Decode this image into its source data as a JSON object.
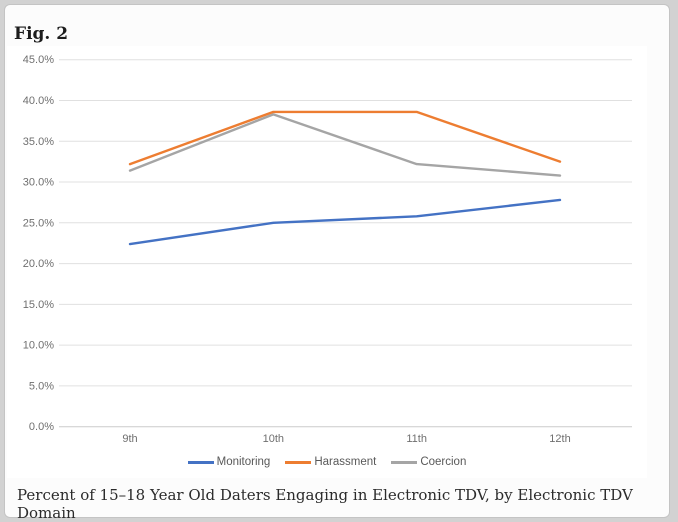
{
  "page": {
    "figure_label": "Fig. 2",
    "caption": "Percent of 15–18 Year Old Daters Engaging in Electronic TDV, by Electronic TDV Domain"
  },
  "chart_data": {
    "type": "line",
    "title": "Fig. 2",
    "xlabel": "",
    "ylabel": "",
    "categories": [
      "9th",
      "10th",
      "11th",
      "12th"
    ],
    "y_tick_labels": [
      "45.0%",
      "40.0%",
      "35.0%",
      "30.0%",
      "25.0%",
      "20.0%",
      "15.0%",
      "10.0%",
      "5.0%",
      "0.0%"
    ],
    "ylim": [
      0,
      45
    ],
    "y_tick_step": 5,
    "grid": true,
    "legend_position": "bottom",
    "series": [
      {
        "name": "Monitoring",
        "color": "#4472C4",
        "values": [
          22.4,
          25.0,
          25.8,
          27.8
        ]
      },
      {
        "name": "Harassment",
        "color": "#ED7D31",
        "values": [
          32.2,
          38.6,
          38.6,
          32.5
        ]
      },
      {
        "name": "Coercion",
        "color": "#A5A5A5",
        "values": [
          31.4,
          38.3,
          32.2,
          30.8
        ]
      }
    ],
    "colors": {
      "gridline": "#e0e0e0",
      "axis_line": "#cccccc",
      "tick_text": "#6f6f6f",
      "legend_text": "#595959",
      "plot_background": "#ffffff"
    }
  }
}
